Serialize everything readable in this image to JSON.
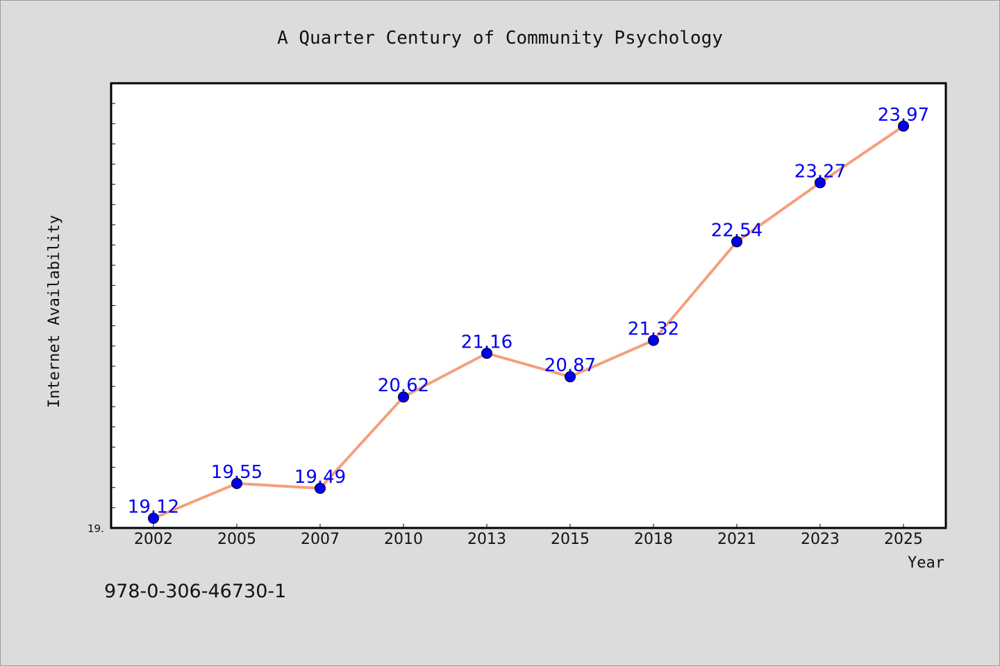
{
  "footer": {
    "isbn": "978-0-306-46730-1"
  },
  "chart_data": {
    "type": "line",
    "title": "A Quarter Century of Community Psychology",
    "xlabel": "Year",
    "ylabel": "Internet Availability",
    "categories": [
      "2002",
      "2005",
      "2007",
      "2010",
      "2013",
      "2015",
      "2018",
      "2021",
      "2023",
      "2025"
    ],
    "series": [
      {
        "values": [
          19.12,
          19.55,
          19.49,
          20.62,
          21.16,
          20.87,
          21.32,
          22.54,
          23.27,
          23.97
        ]
      }
    ],
    "ylim": [
      19.0,
      24.5
    ],
    "y_tick_label": "19.",
    "grid": false,
    "line_color": "#f4a07c",
    "marker_color": "#0000ee",
    "label_color": "#0000ee"
  }
}
